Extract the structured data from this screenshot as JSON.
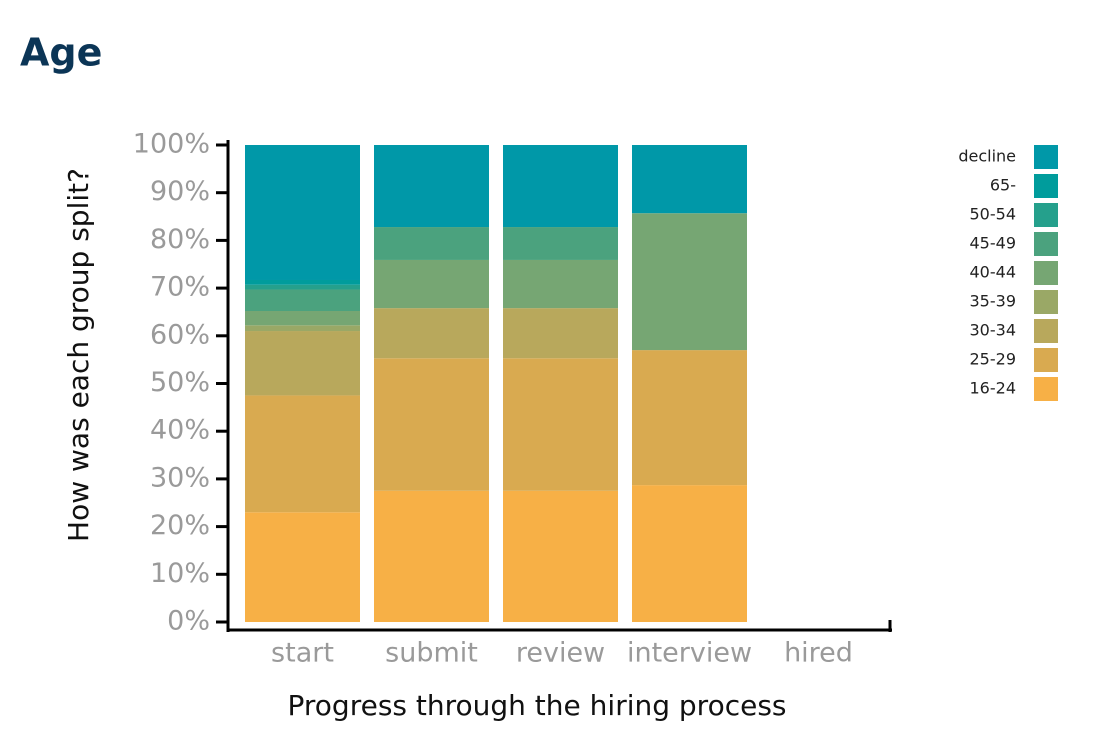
{
  "chart_data": {
    "type": "stacked-bar",
    "title": "Age",
    "x_label": "Progress through the hiring process",
    "y_label": "How was each group split?",
    "categories": [
      "start",
      "submit",
      "review",
      "interview",
      "hired"
    ],
    "series": [
      {
        "name": "16-24",
        "color": "#f7b046",
        "values": [
          23,
          27.5,
          27.5,
          28.7,
          0
        ]
      },
      {
        "name": "25-29",
        "color": "#d9aa50",
        "values": [
          24.5,
          27.8,
          27.8,
          28.3,
          0
        ]
      },
      {
        "name": "30-34",
        "color": "#b8a85c",
        "values": [
          13.5,
          10.5,
          10.5,
          0,
          0
        ]
      },
      {
        "name": "35-39",
        "color": "#9aa866",
        "values": [
          1.2,
          0,
          0,
          0,
          0
        ]
      },
      {
        "name": "40-44",
        "color": "#76a673",
        "values": [
          3,
          10.1,
          10.1,
          28.7,
          0
        ]
      },
      {
        "name": "45-49",
        "color": "#4ba27e",
        "values": [
          4.5,
          6.9,
          6.9,
          0,
          0
        ]
      },
      {
        "name": "50-54",
        "color": "#25a08c",
        "values": [
          1,
          0,
          0,
          0,
          0
        ]
      },
      {
        "name": "65-",
        "color": "#009c9c",
        "values": [
          1,
          0,
          0,
          0,
          0
        ]
      },
      {
        "name": "decline",
        "color": "#0098a8",
        "values": [
          28.3,
          17.2,
          17.2,
          14.3,
          0
        ]
      }
    ],
    "ylim": [
      0,
      100
    ],
    "yticks": [
      {
        "value": 0,
        "label": "0%"
      },
      {
        "value": 10,
        "label": "10%"
      },
      {
        "value": 20,
        "label": "20%"
      },
      {
        "value": 30,
        "label": "30%"
      },
      {
        "value": 40,
        "label": "40%"
      },
      {
        "value": 50,
        "label": "50%"
      },
      {
        "value": 60,
        "label": "60%"
      },
      {
        "value": 70,
        "label": "70%"
      },
      {
        "value": 80,
        "label": "80%"
      },
      {
        "value": 90,
        "label": "90%"
      },
      {
        "value": 100,
        "label": "100%"
      }
    ],
    "legend": "right"
  }
}
